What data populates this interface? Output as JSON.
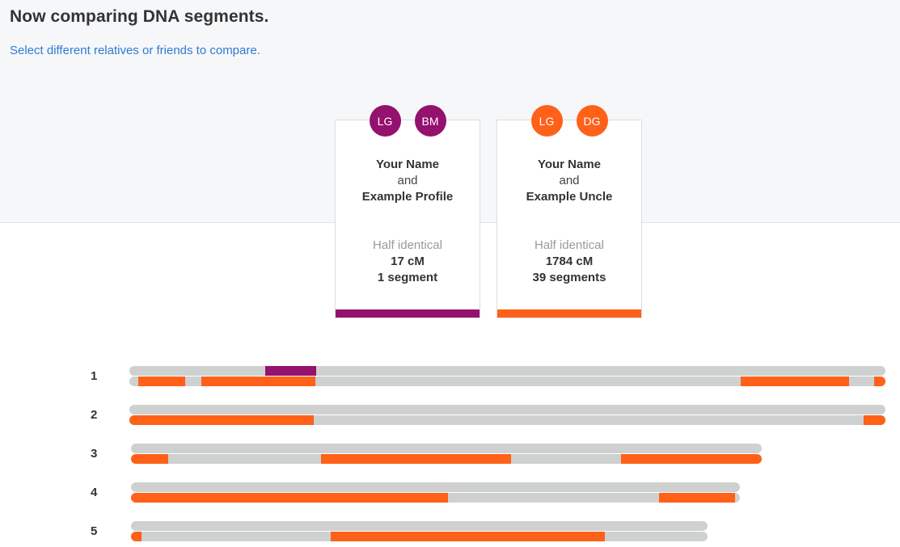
{
  "header": {
    "title": "Now comparing DNA segments.",
    "compare_link": "Select different relatives or friends to compare."
  },
  "colors": {
    "purple": "#95116e",
    "orange": "#ff6119",
    "track": "#cfd0d0",
    "link": "#2d7bd3"
  },
  "comparisons": [
    {
      "avatars": [
        {
          "initials": "LG"
        },
        {
          "initials": "BM"
        }
      ],
      "person_a": "Your Name",
      "conjunction": "and",
      "person_b": "Example Profile",
      "relation": "Half identical",
      "total": "17 cM",
      "segments": "1 segment",
      "color": "#95116e"
    },
    {
      "avatars": [
        {
          "initials": "LG"
        },
        {
          "initials": "DG"
        }
      ],
      "person_a": "Your Name",
      "conjunction": "and",
      "person_b": "Example Uncle",
      "relation": "Half identical",
      "total": "1784 cM",
      "segments": "39 segments",
      "color": "#ff6119"
    }
  ],
  "chromosomes": [
    {
      "number": "1",
      "relative_length": 1.0,
      "tracks": [
        {
          "comparison": 0,
          "segments": [
            [
              0.18,
              0.247
            ]
          ]
        },
        {
          "comparison": 1,
          "segments": [
            [
              0.012,
              0.074
            ],
            [
              0.095,
              0.246
            ],
            [
              0.809,
              0.952
            ],
            [
              0.985,
              1.0
            ]
          ]
        }
      ]
    },
    {
      "number": "2",
      "relative_length": 1.0,
      "tracks": [
        {
          "comparison": 0,
          "segments": []
        },
        {
          "comparison": 1,
          "segments": [
            [
              0.0,
              0.244
            ],
            [
              0.971,
              1.0
            ]
          ]
        }
      ]
    },
    {
      "number": "3",
      "relative_length": 0.834,
      "tracks": [
        {
          "comparison": 0,
          "segments": []
        },
        {
          "comparison": 1,
          "segments": [
            [
              0.0,
              0.059
            ],
            [
              0.301,
              0.603
            ],
            [
              0.777,
              1.0
            ]
          ]
        }
      ]
    },
    {
      "number": "4",
      "relative_length": 0.805,
      "tracks": [
        {
          "comparison": 0,
          "segments": []
        },
        {
          "comparison": 1,
          "segments": [
            [
              0.0,
              0.521
            ],
            [
              0.867,
              0.993
            ]
          ]
        }
      ]
    },
    {
      "number": "5",
      "relative_length": 0.763,
      "tracks": [
        {
          "comparison": 0,
          "segments": []
        },
        {
          "comparison": 1,
          "segments": [
            [
              0.0,
              0.018
            ],
            [
              0.346,
              0.822
            ]
          ]
        }
      ]
    }
  ]
}
